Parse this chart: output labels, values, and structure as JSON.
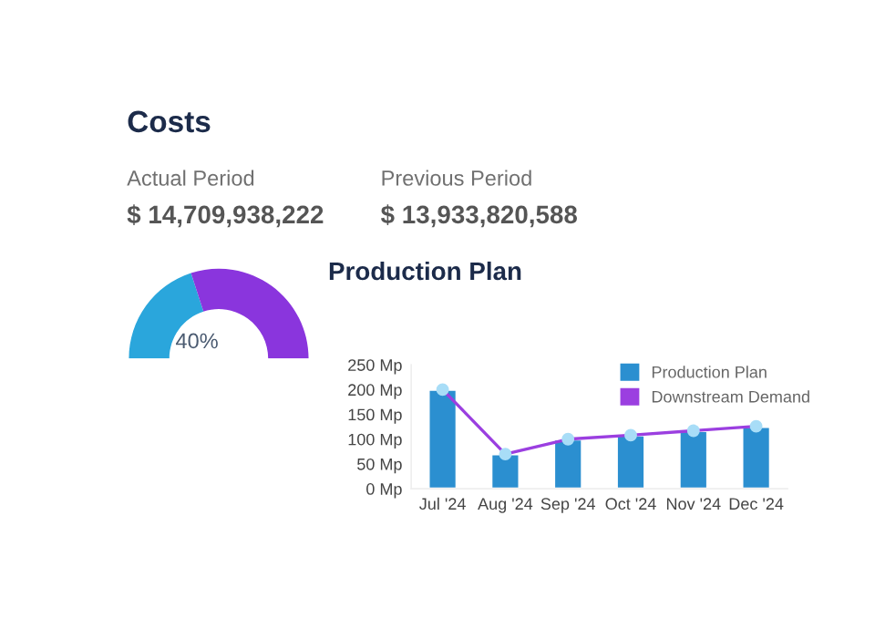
{
  "chart_data": [
    {
      "type": "donut",
      "title": "Costs",
      "categories": [
        null,
        null
      ],
      "values": [
        40,
        60
      ],
      "colors": [
        "#2aa6dc",
        "#8a35dd"
      ],
      "value_labels": [
        "40%",
        null
      ],
      "annotations": [
        "Actual Period",
        "$ 14,709,938,222",
        "Previous Period",
        "$ 13,933,820,588"
      ]
    },
    {
      "type": "bar",
      "title": "Production Plan",
      "categories": [
        "Jul '24",
        "Aug '24",
        "Sep '24",
        "Oct '24",
        "Nov '24",
        "Dec '24"
      ],
      "series": [
        {
          "name": "Production Plan",
          "type": "bar",
          "color": "#2b8fd0",
          "values": [
            200,
            70,
            100,
            108,
            117,
            125
          ]
        },
        {
          "name": "Downstream Demand",
          "type": "line",
          "color": "#9b3fe0",
          "marker": "circle",
          "values": [
            200,
            70,
            100,
            108,
            117,
            126
          ]
        }
      ],
      "ylim": [
        0,
        250
      ],
      "yticks": [
        {
          "value": 0,
          "label": "0 Mp"
        },
        {
          "value": 50,
          "label": "50 Mp"
        },
        {
          "value": 100,
          "label": "100 Mp"
        },
        {
          "value": 150,
          "label": "150 Mp"
        },
        {
          "value": 200,
          "label": "200 Mp"
        },
        {
          "value": 250,
          "label": "250 Mp"
        }
      ],
      "grid": false,
      "legend": "top right"
    }
  ]
}
